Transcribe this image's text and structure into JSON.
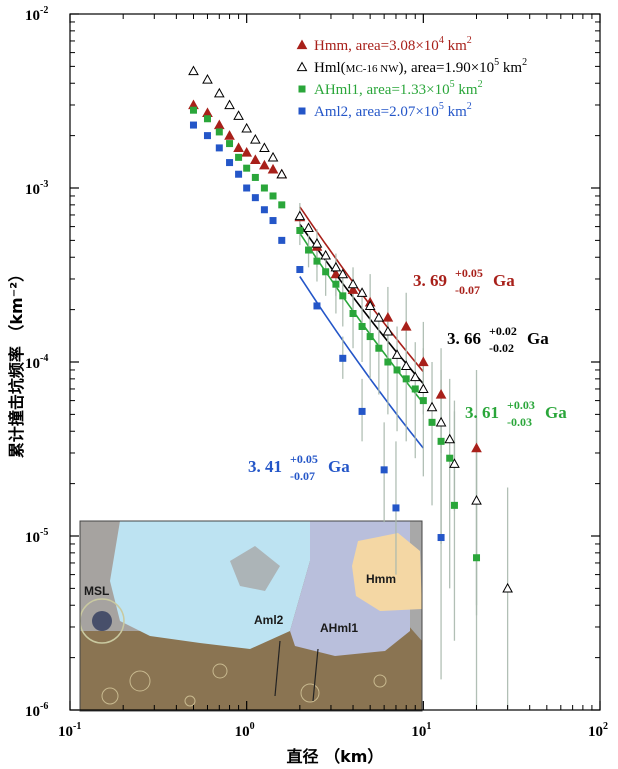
{
  "chart_data": {
    "type": "scatter",
    "xlabel": "直径 （km）",
    "ylabel": "累计撞击坑频率 （km⁻²）",
    "xscale": "log",
    "yscale": "log",
    "xlim": [
      0.1,
      100
    ],
    "ylim": [
      1e-06,
      0.01
    ],
    "x_ticks": [
      {
        "value": 0.1,
        "base": "10",
        "exp": "-1"
      },
      {
        "value": 1,
        "base": "10",
        "exp": "0"
      },
      {
        "value": 10,
        "base": "10",
        "exp": "1"
      },
      {
        "value": 100,
        "base": "10",
        "exp": "2"
      }
    ],
    "y_ticks": [
      {
        "value": 1e-06,
        "base": "10",
        "exp": "-6"
      },
      {
        "value": 1e-05,
        "base": "10",
        "exp": "-5"
      },
      {
        "value": 0.0001,
        "base": "10",
        "exp": "-4"
      },
      {
        "value": 0.001,
        "base": "10",
        "exp": "-3"
      },
      {
        "value": 0.01,
        "base": "10",
        "exp": "-2"
      }
    ],
    "legend_position": "top-right",
    "series": [
      {
        "name": "Hmm, area=3.08×10⁴ km²",
        "legend": {
          "pre": "Hmm, area=3.08×10",
          "sup1": "4",
          "mid": " km",
          "sup2": "2"
        },
        "color": "#a8201a",
        "marker": "triangle-filled",
        "x": [
          0.5,
          0.6,
          0.7,
          0.8,
          0.9,
          1.0,
          1.12,
          1.26,
          1.41,
          1.58,
          2.0,
          2.5,
          3.2,
          4.0,
          5.0,
          6.3,
          8.0,
          10.0,
          12.6,
          20.0
        ],
        "y": [
          0.003,
          0.0027,
          0.0023,
          0.002,
          0.0017,
          0.0016,
          0.00145,
          0.00135,
          0.00128,
          0.0012,
          0.00068,
          0.00046,
          0.00032,
          0.00026,
          0.00022,
          0.00018,
          0.00016,
          0.0001,
          6.5e-05,
          3.2e-05
        ],
        "err_low": [
          null,
          null,
          null,
          null,
          null,
          null,
          null,
          null,
          null,
          null,
          0.00055,
          0.00035,
          0.00024,
          0.00018,
          0.00014,
          0.00011,
          9e-05,
          5e-05,
          3e-05,
          3.5e-06
        ],
        "err_high": [
          null,
          null,
          null,
          null,
          null,
          null,
          null,
          null,
          null,
          null,
          0.00082,
          0.00058,
          0.00042,
          0.00035,
          0.00032,
          0.00027,
          0.00025,
          0.00017,
          0.00012,
          9e-05
        ],
        "fit": {
          "x_start": 2.0,
          "x_end": 10.0,
          "y_start": 0.00078,
          "y_end": 8.8e-05
        },
        "age": {
          "base": "3. 69",
          "sup": "+0.05",
          "sub": "-0.07",
          "unit": "Ga"
        }
      },
      {
        "name": "Hml(MC-16 NW), area=1.90×10⁵ km²",
        "legend": {
          "pre": "Hml(",
          "small": "MC-16 NW",
          "post": "), area=1.90×10",
          "sup1": "5",
          "mid": " km",
          "sup2": "2"
        },
        "color": "#000000",
        "marker": "triangle-open",
        "x": [
          0.5,
          0.6,
          0.7,
          0.8,
          0.9,
          1.0,
          1.12,
          1.26,
          1.41,
          1.58,
          2.0,
          2.24,
          2.5,
          2.8,
          3.2,
          3.5,
          4.0,
          4.5,
          5.0,
          5.6,
          6.3,
          7.1,
          8.0,
          9.0,
          10.0,
          11.2,
          12.6,
          14.1,
          15.0,
          20.0,
          30.0
        ],
        "y": [
          0.0047,
          0.0042,
          0.0035,
          0.003,
          0.0026,
          0.0022,
          0.0019,
          0.0017,
          0.0015,
          0.0012,
          0.00069,
          0.00059,
          0.00048,
          0.00041,
          0.00035,
          0.00032,
          0.00028,
          0.00025,
          0.00021,
          0.00018,
          0.00015,
          0.00011,
          9.5e-05,
          8.2e-05,
          7e-05,
          5.5e-05,
          4.5e-05,
          3.6e-05,
          2.6e-05,
          1.6e-05,
          5e-06
        ],
        "err_low": [
          null,
          null,
          null,
          null,
          null,
          null,
          null,
          null,
          null,
          null,
          null,
          null,
          null,
          null,
          null,
          null,
          null,
          null,
          null,
          null,
          null,
          null,
          null,
          null,
          null,
          null,
          null,
          null,
          1.4e-05,
          4e-06,
          1e-06
        ],
        "err_high": [
          null,
          null,
          null,
          null,
          null,
          null,
          null,
          null,
          null,
          null,
          null,
          null,
          null,
          null,
          null,
          null,
          null,
          null,
          null,
          null,
          null,
          null,
          null,
          null,
          null,
          null,
          null,
          null,
          6e-05,
          4.8e-05,
          1.9e-05
        ],
        "fit": {
          "x_start": 2.0,
          "x_end": 10.0,
          "y_start": 0.00062,
          "y_end": 7.5e-05
        },
        "age": {
          "base": "3. 66",
          "sup": "+0.02",
          "sub": "-0.02",
          "unit": "Ga"
        }
      },
      {
        "name": "AHml1, area=1.33×10⁵ km²",
        "legend": {
          "pre": "AHml1, area=1.33×10",
          "sup1": "5",
          "mid": " km",
          "sup2": "2"
        },
        "color": "#2aa63a",
        "marker": "square-filled",
        "x": [
          0.5,
          0.6,
          0.7,
          0.8,
          0.9,
          1.0,
          1.12,
          1.26,
          1.41,
          1.58,
          2.0,
          2.24,
          2.5,
          2.8,
          3.2,
          3.5,
          4.0,
          4.5,
          5.0,
          5.6,
          6.3,
          7.1,
          8.0,
          9.0,
          10.0,
          11.2,
          12.6,
          14.1,
          15.0,
          20.0
        ],
        "y": [
          0.0028,
          0.0025,
          0.0021,
          0.0018,
          0.0015,
          0.0013,
          0.00115,
          0.001,
          0.0009,
          0.0008,
          0.00057,
          0.00044,
          0.00038,
          0.00033,
          0.00028,
          0.00024,
          0.00019,
          0.00016,
          0.00014,
          0.00012,
          0.0001,
          9e-05,
          8e-05,
          7e-05,
          6e-05,
          4.5e-05,
          3.5e-05,
          2.8e-05,
          1.5e-05,
          7.5e-06
        ],
        "err_low": [
          null,
          null,
          null,
          null,
          null,
          null,
          null,
          null,
          null,
          null,
          0.00047,
          0.00035,
          0.00029,
          0.00024,
          0.00019,
          0.00016,
          0.00012,
          0.0001,
          8e-05,
          6.5e-05,
          5e-05,
          4e-05,
          3.5e-05,
          2.8e-05,
          2.2e-05,
          1.5e-05,
          9e-06,
          5e-06,
          2.5e-06,
          8e-07
        ],
        "err_high": [
          null,
          null,
          null,
          null,
          null,
          null,
          null,
          null,
          null,
          null,
          0.00068,
          0.00054,
          0.00048,
          0.00043,
          0.00038,
          0.00034,
          0.00028,
          0.00024,
          0.00022,
          0.00019,
          0.00017,
          0.00016,
          0.00015,
          0.00013,
          0.00012,
          0.0001,
          9e-05,
          8e-05,
          5.2e-05,
          3.5e-05
        ],
        "fit": {
          "x_start": 2.0,
          "x_end": 10.0,
          "y_start": 0.00055,
          "y_end": 5.8e-05
        },
        "age": {
          "base": "3. 61",
          "sup": "+0.03",
          "sub": "-0.03",
          "unit": "Ga"
        }
      },
      {
        "name": "Aml2, area=2.07×10⁵ km²",
        "legend": {
          "pre": "Aml2, area=2.07×10",
          "sup1": "5",
          "mid": " km",
          "sup2": "2"
        },
        "color": "#2456c8",
        "marker": "square-filled",
        "x": [
          0.5,
          0.6,
          0.7,
          0.8,
          0.9,
          1.0,
          1.12,
          1.26,
          1.41,
          1.58,
          2.0,
          2.5,
          3.5,
          4.5,
          6.0,
          7.0,
          12.6
        ],
        "y": [
          0.0023,
          0.002,
          0.0017,
          0.0014,
          0.0012,
          0.001,
          0.00088,
          0.00075,
          0.00065,
          0.0005,
          0.00034,
          0.00021,
          0.000105,
          5.2e-05,
          2.4e-05,
          1.45e-05,
          9.8e-06
        ],
        "err_low": [
          null,
          null,
          null,
          null,
          null,
          null,
          null,
          null,
          null,
          null,
          null,
          null,
          8e-05,
          3.5e-05,
          1.2e-05,
          6e-06,
          1.5e-06
        ],
        "err_high": [
          null,
          null,
          null,
          null,
          null,
          null,
          null,
          null,
          null,
          null,
          null,
          null,
          0.00014,
          8e-05,
          4.5e-05,
          3.5e-05,
          4.2e-05
        ],
        "fit": {
          "x_start": 2.0,
          "x_end": 10.0,
          "y_start": 0.00031,
          "y_end": 3.2e-05
        },
        "age": {
          "base": "3. 41",
          "sup": "+0.05",
          "sub": "-0.07",
          "unit": "Ga"
        }
      }
    ],
    "inset_map": {
      "labels": [
        "Aml2",
        "Hmm",
        "AHml1",
        "MSL"
      ],
      "colors": {
        "aml2": "#bde3f2",
        "ahml1": "#b9bfdc",
        "hmm": "#f4d7a4",
        "terrain": "#8a7452",
        "terrain_light": "#a8a8a8"
      }
    }
  }
}
